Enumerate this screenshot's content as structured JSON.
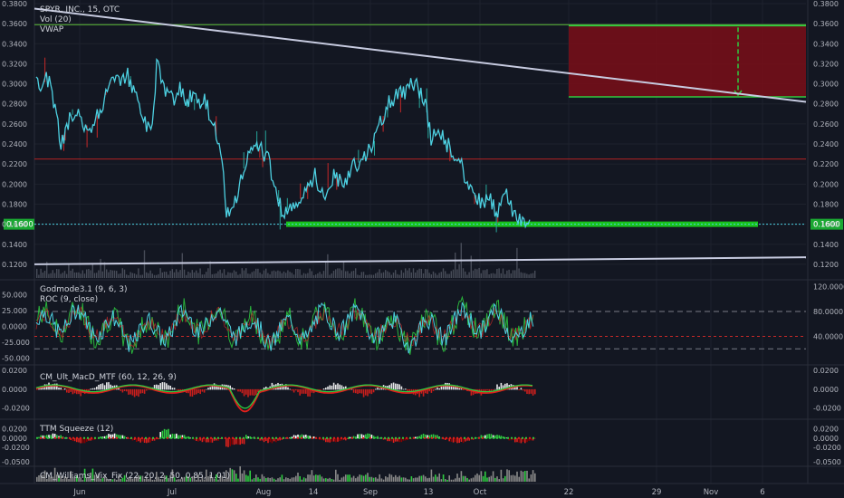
{
  "header": {
    "symbol_line": "SPYR, INC., 15, OTC",
    "vol_label": "Vol (20)",
    "vwap_label": "VWAP"
  },
  "colors": {
    "background": "#131722",
    "grid": "#1e222d",
    "price_line": "#4dd0e1",
    "trendline": "#c7cbe0",
    "box_fill": "#7a0e18",
    "box_border": "#2ecc40",
    "support": "#19c21d",
    "current_price_badge": "#1aa832",
    "bull": "#2ecc40",
    "bear": "#e0201c",
    "macd_red": "#e0201c",
    "macd_green": "#2ecc40",
    "volume": "#555a66"
  },
  "chart_data": [
    {
      "id": "price",
      "type": "line",
      "ylim": [
        0.11,
        0.38
      ],
      "y_ticks": [
        "0.3800",
        "0.3600",
        "0.3400",
        "0.3200",
        "0.3000",
        "0.2800",
        "0.2600",
        "0.2400",
        "0.2200",
        "0.2000",
        "0.1800",
        "0.1600",
        "0.1400",
        "0.1200"
      ],
      "current_price": "0.1600",
      "x_labels": [
        "Jun",
        "Jul",
        "Aug",
        "14",
        "Sep",
        "13",
        "Oct",
        "22",
        "29",
        "Nov",
        "6"
      ],
      "anchors": [
        [
          0.0,
          0.3
        ],
        [
          0.01,
          0.29
        ],
        [
          0.02,
          0.305
        ],
        [
          0.03,
          0.3
        ],
        [
          0.05,
          0.24
        ],
        [
          0.07,
          0.27
        ],
        [
          0.09,
          0.265
        ],
        [
          0.11,
          0.255
        ],
        [
          0.13,
          0.275
        ],
        [
          0.15,
          0.3
        ],
        [
          0.17,
          0.305
        ],
        [
          0.185,
          0.31
        ],
        [
          0.2,
          0.29
        ],
        [
          0.215,
          0.27
        ],
        [
          0.225,
          0.255
        ],
        [
          0.235,
          0.25
        ],
        [
          0.245,
          0.33
        ],
        [
          0.255,
          0.3
        ],
        [
          0.265,
          0.29
        ],
        [
          0.28,
          0.28
        ],
        [
          0.29,
          0.295
        ],
        [
          0.3,
          0.285
        ],
        [
          0.315,
          0.285
        ],
        [
          0.33,
          0.285
        ],
        [
          0.345,
          0.28
        ],
        [
          0.36,
          0.255
        ],
        [
          0.375,
          0.235
        ],
        [
          0.385,
          0.175
        ],
        [
          0.39,
          0.165
        ],
        [
          0.395,
          0.17
        ],
        [
          0.405,
          0.185
        ],
        [
          0.42,
          0.215
        ],
        [
          0.44,
          0.235
        ],
        [
          0.455,
          0.235
        ],
        [
          0.47,
          0.225
        ],
        [
          0.48,
          0.2
        ],
        [
          0.49,
          0.185
        ],
        [
          0.5,
          0.17
        ],
        [
          0.51,
          0.175
        ],
        [
          0.53,
          0.18
        ],
        [
          0.55,
          0.2
        ],
        [
          0.565,
          0.21
        ],
        [
          0.575,
          0.19
        ],
        [
          0.59,
          0.195
        ],
        [
          0.605,
          0.21
        ],
        [
          0.62,
          0.2
        ],
        [
          0.64,
          0.215
        ],
        [
          0.66,
          0.225
        ],
        [
          0.68,
          0.235
        ],
        [
          0.7,
          0.265
        ],
        [
          0.72,
          0.285
        ],
        [
          0.74,
          0.29
        ],
        [
          0.76,
          0.3
        ],
        [
          0.775,
          0.295
        ],
        [
          0.79,
          0.275
        ],
        [
          0.8,
          0.245
        ],
        [
          0.81,
          0.255
        ],
        [
          0.825,
          0.245
        ],
        [
          0.84,
          0.235
        ],
        [
          0.86,
          0.22
        ],
        [
          0.875,
          0.2
        ],
        [
          0.89,
          0.19
        ],
        [
          0.905,
          0.18
        ],
        [
          0.92,
          0.185
        ],
        [
          0.935,
          0.17
        ],
        [
          0.95,
          0.19
        ],
        [
          0.965,
          0.175
        ],
        [
          0.98,
          0.165
        ],
        [
          1.0,
          0.162
        ]
      ],
      "reward_box": {
        "top": 0.358,
        "bottom": 0.287
      },
      "support_level": 0.16,
      "red_level": 0.225,
      "vwap_level": 0.359
    },
    {
      "id": "godmode",
      "type": "area",
      "ylim": [
        -55,
        68
      ],
      "left_ticks": [
        "50.000",
        "25.000",
        "0.0000",
        "-25.000",
        "-50.000"
      ],
      "right_ticks": [
        "120.0000",
        "80.0000",
        "40.0000"
      ],
      "ref_levels": [
        80,
        40,
        20
      ],
      "right_ylim": [
        0,
        125
      ]
    },
    {
      "id": "macd",
      "type": "line",
      "ylim": [
        -0.028,
        0.022
      ],
      "left_ticks": [
        "0.0200",
        "0.0000",
        "-0.0200"
      ],
      "right_ticks": [
        "0.0200",
        "0.0000",
        "-0.0200"
      ]
    },
    {
      "id": "squeeze",
      "type": "bar",
      "ylim": [
        -0.052,
        0.032
      ],
      "left_ticks": [
        "0.0200",
        "0.0000",
        "-0.0200",
        "-0.0500"
      ],
      "right_ticks": [
        "0.0200",
        "0.0000",
        "-0.0200",
        "-0.0500"
      ]
    },
    {
      "id": "vixfix",
      "type": "bar",
      "ylim": [
        0,
        1
      ]
    }
  ],
  "indicators": {
    "godmode": "Godmode3.1 (9, 6, 3)",
    "roc": "ROC (9, close)",
    "macd": "CM_Ult_MacD_MTF (60, 12, 26, 9)",
    "squeeze": "TTM Squeeze (12)",
    "vixfix": "CM_Williams_Vix_Fix (22, 20, 2, 50, 0.85, 1.01)"
  }
}
